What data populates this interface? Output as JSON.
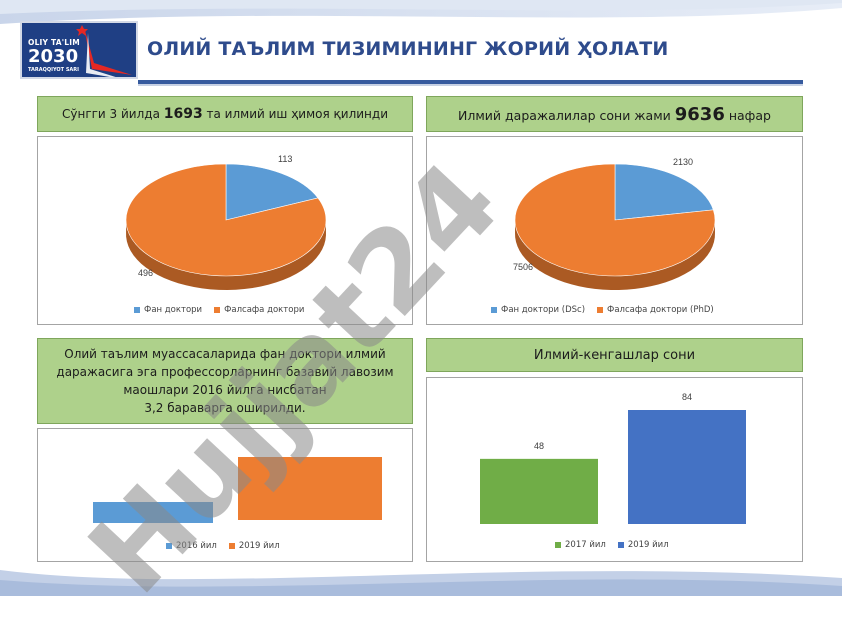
{
  "logo": {
    "line1": "OLIY TA'LIM",
    "line2": "2030",
    "line3": "TARAQQIYOT SARI"
  },
  "title": "ОЛИЙ ТАЪЛИМ ТИЗИМИНИНГ ЖОРИЙ ҲОЛАТИ",
  "box1": {
    "pre": "Сўнгги 3 йилда ",
    "num": "1693",
    "post": " та илмий иш ҳимоя қилинди"
  },
  "box2": {
    "pre": "Илмий даражалилар сони жами ",
    "num": "9636",
    "post": " нафар"
  },
  "box3": {
    "line1": "Олий таълим муассасаларида фан доктори илмий",
    "line2": "даражасига эга профессорларнинг базавий лавозим",
    "line3": "маошлари 2016 йилга нисбатан",
    "line4": "3,2 бараварга оширилди."
  },
  "box4": {
    "text": "Илмий-кенгашлар сони"
  },
  "watermark": "Hujjat24",
  "colors": {
    "blue": "#5b9bd5",
    "orange": "#ed7d31",
    "green": "#70ad47",
    "darkblue": "#4472c4",
    "header_green": "#aed18b",
    "title_blue": "#2e4b8c"
  },
  "chart_data": [
    {
      "type": "pie",
      "labels": [
        "Фан доктори",
        "Фалсафа доктори"
      ],
      "values": [
        113,
        496
      ],
      "colors": [
        "#5b9bd5",
        "#ed7d31"
      ]
    },
    {
      "type": "pie",
      "labels": [
        "Фан доктори (DSc)",
        "Фалсафа доктори (PhD)"
      ],
      "values": [
        2130,
        7506
      ],
      "colors": [
        "#5b9bd5",
        "#ed7d31"
      ]
    },
    {
      "type": "bar",
      "orientation": "horizontal",
      "categories": [
        "2016 йил",
        "2019 йил"
      ],
      "values": [
        1,
        3.2
      ],
      "colors": [
        "#5b9bd5",
        "#ed7d31"
      ]
    },
    {
      "type": "bar",
      "categories": [
        "2017 йил",
        "2019 йил"
      ],
      "values": [
        48,
        84
      ],
      "colors": [
        "#70ad47",
        "#4472c4"
      ]
    }
  ]
}
